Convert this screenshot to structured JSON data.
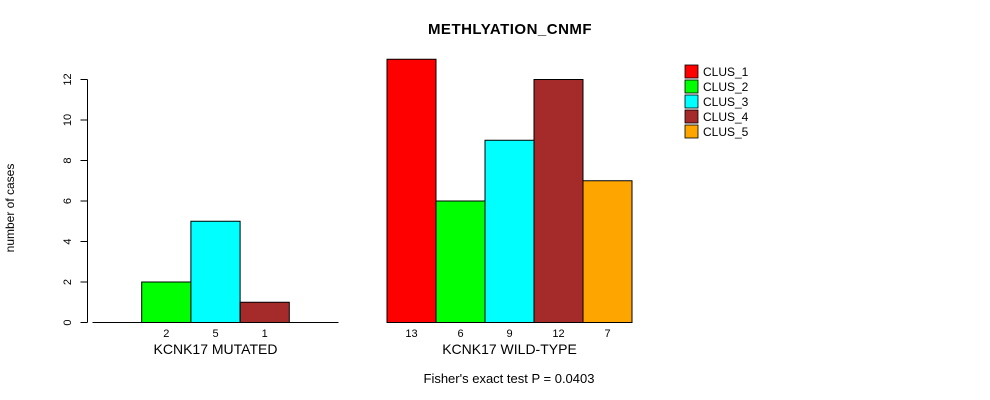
{
  "chart_data": {
    "type": "bar",
    "title": "METHLYATION_CNMF",
    "ylabel": "number of cases",
    "xlabel": "",
    "ylim": [
      0,
      12
    ],
    "yticks": [
      0,
      2,
      4,
      6,
      8,
      10,
      12
    ],
    "grid": false,
    "legend_position": "right",
    "legend": [
      {
        "label": "CLUS_1",
        "color": "#FF0000"
      },
      {
        "label": "CLUS_2",
        "color": "#00FF00"
      },
      {
        "label": "CLUS_3",
        "color": "#00FFFF"
      },
      {
        "label": "CLUS_4",
        "color": "#A52A2A"
      },
      {
        "label": "CLUS_5",
        "color": "#FFA500"
      }
    ],
    "groups": [
      {
        "label": "KCNK17 MUTATED",
        "series": [
          "CLUS_1",
          "CLUS_2",
          "CLUS_3",
          "CLUS_4",
          "CLUS_5"
        ],
        "values": [
          0,
          2,
          5,
          1,
          0
        ],
        "bar_labels": [
          "",
          "2",
          "5",
          "1",
          ""
        ]
      },
      {
        "label": "KCNK17 WILD-TYPE",
        "series": [
          "CLUS_1",
          "CLUS_2",
          "CLUS_3",
          "CLUS_4",
          "CLUS_5"
        ],
        "values": [
          13,
          6,
          9,
          12,
          7
        ],
        "bar_labels": [
          "13",
          "6",
          "9",
          "12",
          "7"
        ]
      }
    ],
    "annotation": "Fisher's exact test P = 0.0403",
    "colors": {
      "bar_stroke": "#000000",
      "axis": "#000000",
      "background": "#FFFFFF"
    }
  }
}
